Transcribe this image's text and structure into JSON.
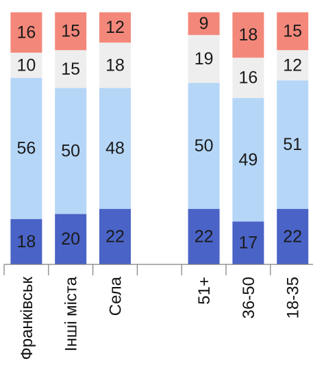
{
  "chart_data": {
    "type": "bar",
    "stacked": true,
    "categories": [
      "Франківськ",
      "Інші міста",
      "Села",
      "",
      "51+",
      "36-50",
      "18-35"
    ],
    "series": [
      {
        "values": [
          18,
          20,
          22,
          null,
          22,
          17,
          22
        ],
        "color": "#4a63c6"
      },
      {
        "values": [
          56,
          50,
          48,
          null,
          50,
          49,
          51
        ],
        "color": "#b5d6f7"
      },
      {
        "values": [
          10,
          15,
          18,
          null,
          19,
          16,
          12
        ],
        "color": "#eeeeee"
      },
      {
        "values": [
          16,
          15,
          12,
          null,
          9,
          18,
          15
        ],
        "color": "#f3887a"
      }
    ],
    "ylim": [
      0,
      100
    ],
    "axis_color": "#7f7f7f",
    "label_color": "#1a1a1a",
    "grid": false,
    "legend": "none"
  }
}
